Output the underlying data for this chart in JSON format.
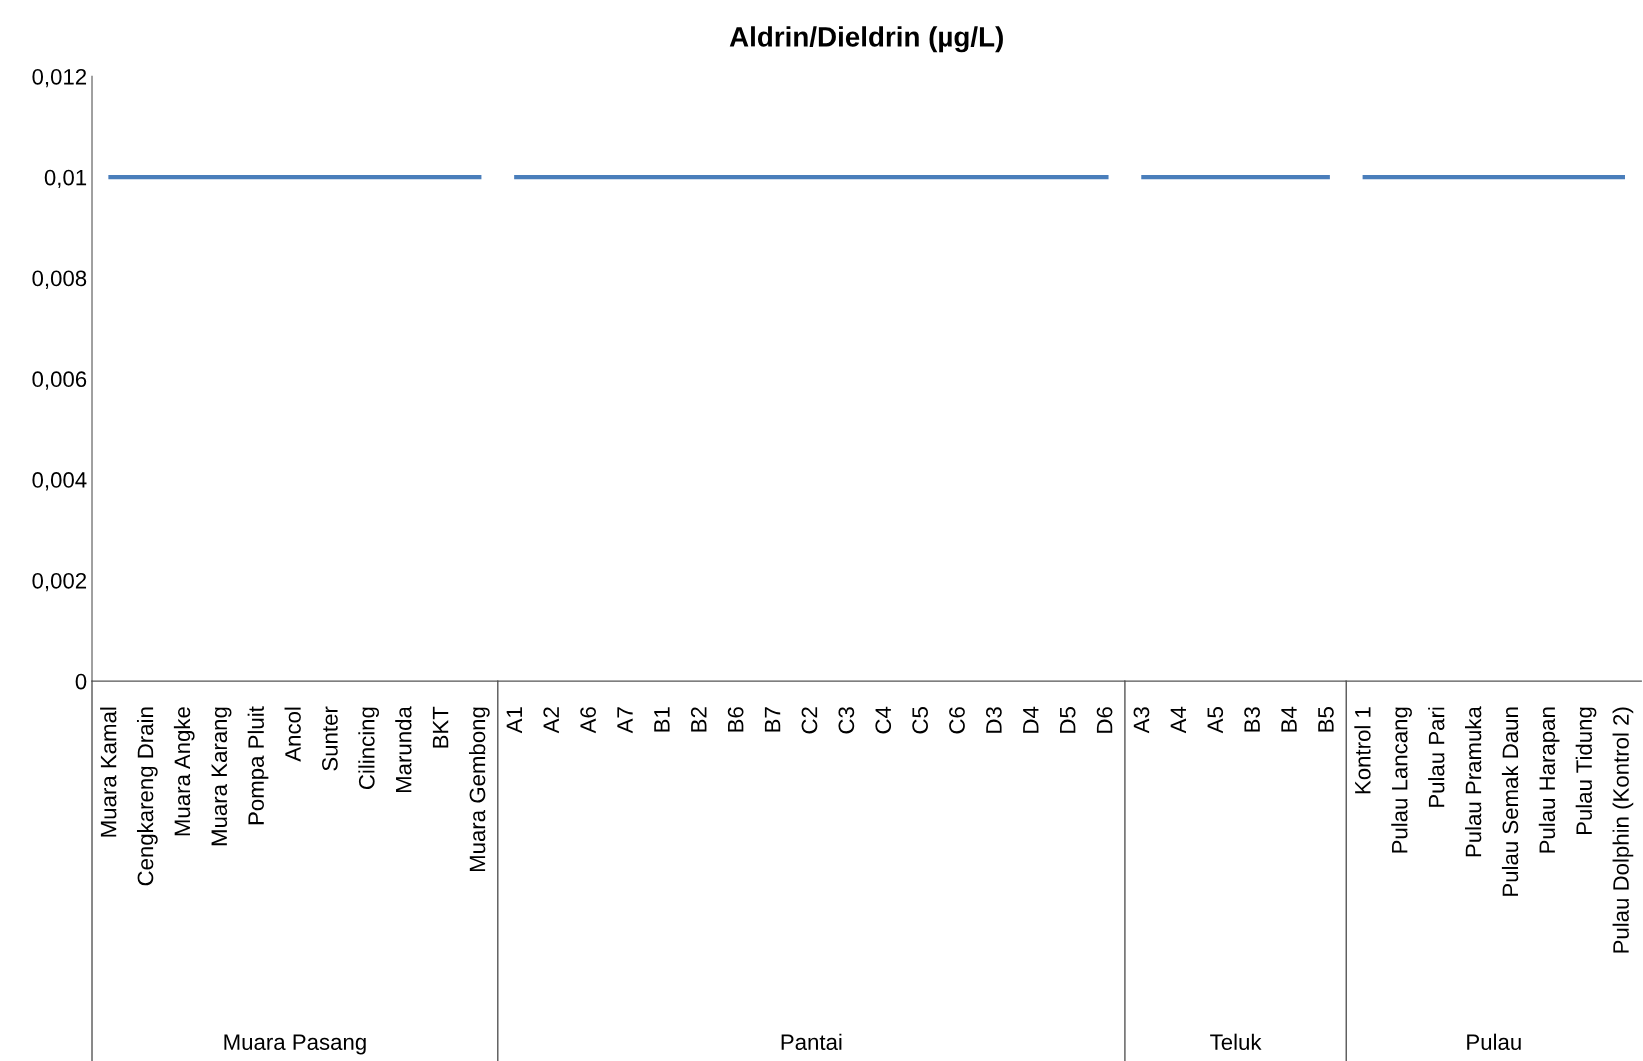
{
  "chart_data": [
    {
      "type": "line",
      "xlabel": "Muara Pasang",
      "categories": [
        "Muara Kamal",
        "Cengkareng Drain",
        "Muara Angke",
        "Muara Karang",
        "Pompa Pluit",
        "Ancol",
        "Sunter",
        "Cilincing",
        "Marunda",
        "BKT",
        "Muara Gembong"
      ],
      "series": [
        {
          "color": "#4a7ebb",
          "values": [
            0.01,
            0.01,
            0.01,
            0.01,
            0.01,
            0.01,
            0.01,
            0.01,
            0.01,
            0.01,
            0.01
          ]
        }
      ],
      "ylim": [
        0,
        0.012
      ],
      "yticks": [
        0,
        {
          "value": 0.002,
          "label": "0,002"
        },
        {
          "value": 0.004,
          "label": "0,004"
        },
        {
          "value": 0.006,
          "label": "0,006"
        },
        {
          "value": 0.008,
          "label": "0,008"
        },
        {
          "value": 0.01,
          "label": "0,01"
        },
        {
          "value": 0.012,
          "label": "0,012"
        }
      ],
      "marker": "none",
      "line_style": "solid"
    },
    {
      "type": "line",
      "title": "Aldrin/Dieldrin (µg/L)",
      "xlabel": "Pantai",
      "categories": [
        "A1",
        "A2",
        "A6",
        "A7",
        "B1",
        "B2",
        "B6",
        "B7",
        "C2",
        "C3",
        "C4",
        "C5",
        "C6",
        "D3",
        "D4",
        "D5",
        "D6"
      ],
      "series": [
        {
          "color": "#4a7ebb",
          "values": [
            0.01,
            0.01,
            0.01,
            0.01,
            0.01,
            0.01,
            0.01,
            0.01,
            0.01,
            0.01,
            0.01,
            0.01,
            0.01,
            0.01,
            0.01,
            0.01,
            0.01
          ]
        }
      ],
      "ylim": [
        0,
        0.012
      ],
      "tick_labels": "x",
      "marker": "none",
      "line_style": "solid"
    },
    {
      "type": "line",
      "xlabel": "Teluk",
      "categories": [
        "A3",
        "A4",
        "A5",
        "B3",
        "B4",
        "B5"
      ],
      "series": [
        {
          "color": "#4a7ebb",
          "values": [
            0.01,
            0.01,
            0.01,
            0.01,
            0.01,
            0.01
          ]
        }
      ],
      "ylim": [
        0,
        0.012
      ],
      "tick_labels": "x",
      "marker": "none",
      "line_style": "solid"
    },
    {
      "type": "line",
      "xlabel": "Pulau",
      "categories": [
        "Kontrol 1",
        "Pulau Lancang",
        "Pulau Pari",
        "Pulau Pramuka",
        "Pulau Semak Daun",
        "Pulau Harapan",
        "Pulau Tidung",
        "Pulau Dolphin (Kontrol 2)"
      ],
      "series": [
        {
          "color": "#4a7ebb",
          "values": [
            0.01,
            0.01,
            0.01,
            0.01,
            0.01,
            0.01,
            0.01,
            0.01
          ]
        }
      ],
      "ylim": [
        0,
        0.012
      ],
      "tick_labels": "x",
      "marker": "none",
      "line_style": "solid"
    }
  ]
}
